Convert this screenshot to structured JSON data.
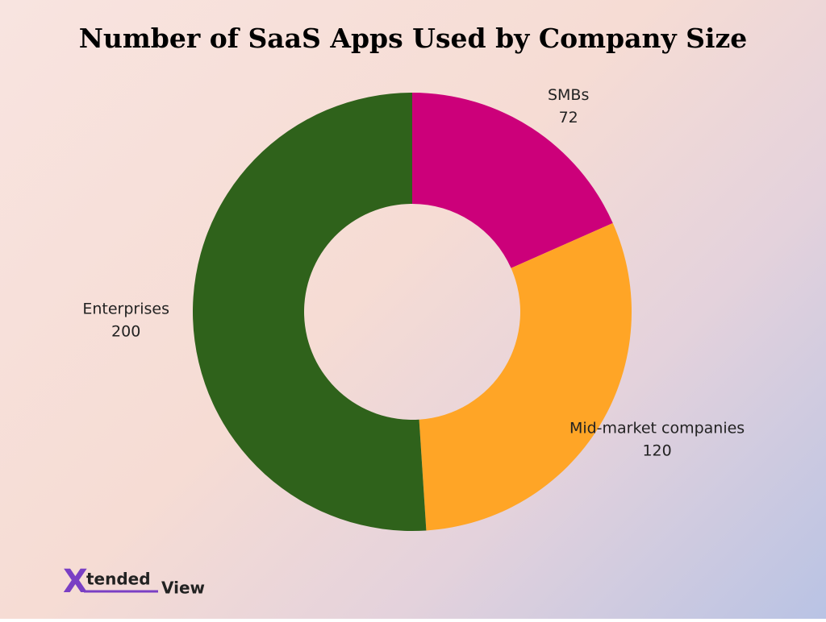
{
  "chart_data": {
    "type": "donut",
    "title": "Number of SaaS Apps Used by Company Size",
    "categories": [
      "SMBs",
      "Mid-market companies",
      "Enterprises"
    ],
    "values": [
      72,
      120,
      200
    ],
    "colors": [
      "#cc007a",
      "#ffa526",
      "#2f621b"
    ]
  },
  "logo": {
    "mark": "X",
    "text": "tended",
    "suffix": "View"
  }
}
